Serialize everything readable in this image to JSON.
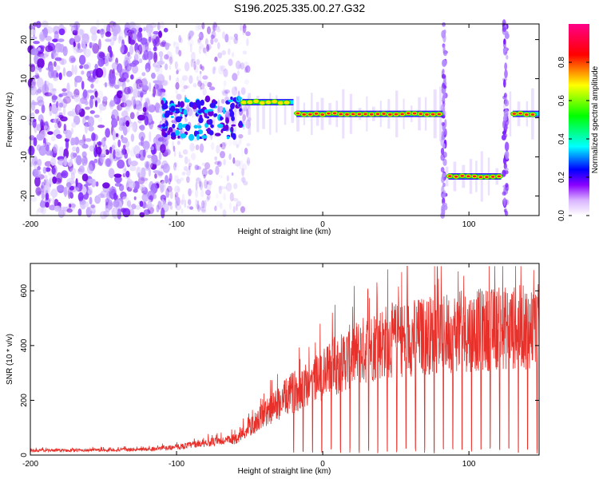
{
  "figure_title": "S196.2025.335.00.27.G32",
  "colors": {
    "snr_line": "#e8302a",
    "track_core": "#ee2222",
    "background": "#ffffff",
    "axis": "#000000"
  },
  "chart_data": [
    {
      "type": "heatmap",
      "title": "",
      "xlabel": "Height of straight line (km)",
      "ylabel": "Frequency (Hz)",
      "xlim": [
        -200,
        148
      ],
      "ylim": [
        -25,
        24
      ],
      "xticks": [
        -200,
        -100,
        0,
        100
      ],
      "xtick_labels": [
        "-200",
        "-100",
        "0",
        "100"
      ],
      "yticks": [
        -20,
        -10,
        0,
        10,
        20
      ],
      "ytick_labels": [
        "-20",
        "-10",
        "0",
        "10",
        "20"
      ],
      "colorbar": {
        "label": "Normalized spectral amplitude",
        "range": [
          0,
          1
        ],
        "ticks": [
          0.0,
          0.2,
          0.4,
          0.6,
          0.8
        ],
        "tick_labels": [
          "0.0",
          "0.2",
          "0.4",
          "0.6",
          "0.8"
        ],
        "colors": [
          "#ffffff",
          "#a900ff",
          "#0000ff",
          "#00ffff",
          "#00ff00",
          "#ffff00",
          "#ff0000",
          "#ff0080"
        ]
      },
      "dominant_frequency_track": [
        {
          "x_range": [
            -110,
            -55
          ],
          "freq_hz": 0,
          "level": "scattered"
        },
        {
          "x_range": [
            -55,
            -20
          ],
          "freq_hz": 4,
          "level": "high"
        },
        {
          "x_range": [
            -18,
            82
          ],
          "freq_hz": 1,
          "level": "peak"
        },
        {
          "x_range": [
            86,
            122
          ],
          "freq_hz": -15,
          "level": "peak"
        },
        {
          "x_range": [
            130,
            148
          ],
          "freq_hz": 1,
          "level": "peak"
        }
      ],
      "noise_regions": [
        {
          "x_range": [
            -200,
            -105
          ],
          "freq_range": [
            -25,
            24
          ],
          "level": "noise"
        }
      ],
      "vertical_streaks": [
        {
          "x": 83,
          "level": "medium"
        },
        {
          "x": 125,
          "level": "medium"
        }
      ]
    },
    {
      "type": "line",
      "title": "",
      "xlabel": "Height of straight line (km)",
      "ylabel": "SNR (10 * v/v)",
      "xlim": [
        -200,
        148
      ],
      "ylim": [
        0,
        700
      ],
      "xticks": [
        -200,
        -100,
        0,
        100
      ],
      "xtick_labels": [
        "-200",
        "-100",
        "0",
        "100"
      ],
      "yticks": [
        0,
        200,
        400,
        600
      ],
      "ytick_labels": [
        "0",
        "200",
        "400",
        "600"
      ],
      "series": [
        {
          "name": "SNR",
          "envelope": {
            "x": [
              -200,
              -150,
              -120,
              -100,
              -80,
              -70,
              -60,
              -50,
              -40,
              -30,
              -20,
              -10,
              0,
              10,
              20,
              30,
              40,
              50,
              60,
              80,
              100,
              120,
              148
            ],
            "y": [
              20,
              22,
              25,
              35,
              55,
              60,
              70,
              120,
              180,
              230,
              280,
              320,
              360,
              400,
              440,
              470,
              500,
              510,
              520,
              540,
              550,
              560,
              570
            ]
          },
          "peak_max": 690,
          "dropouts": "deep periodic dips to near zero for heights above about -20 km"
        }
      ]
    }
  ]
}
